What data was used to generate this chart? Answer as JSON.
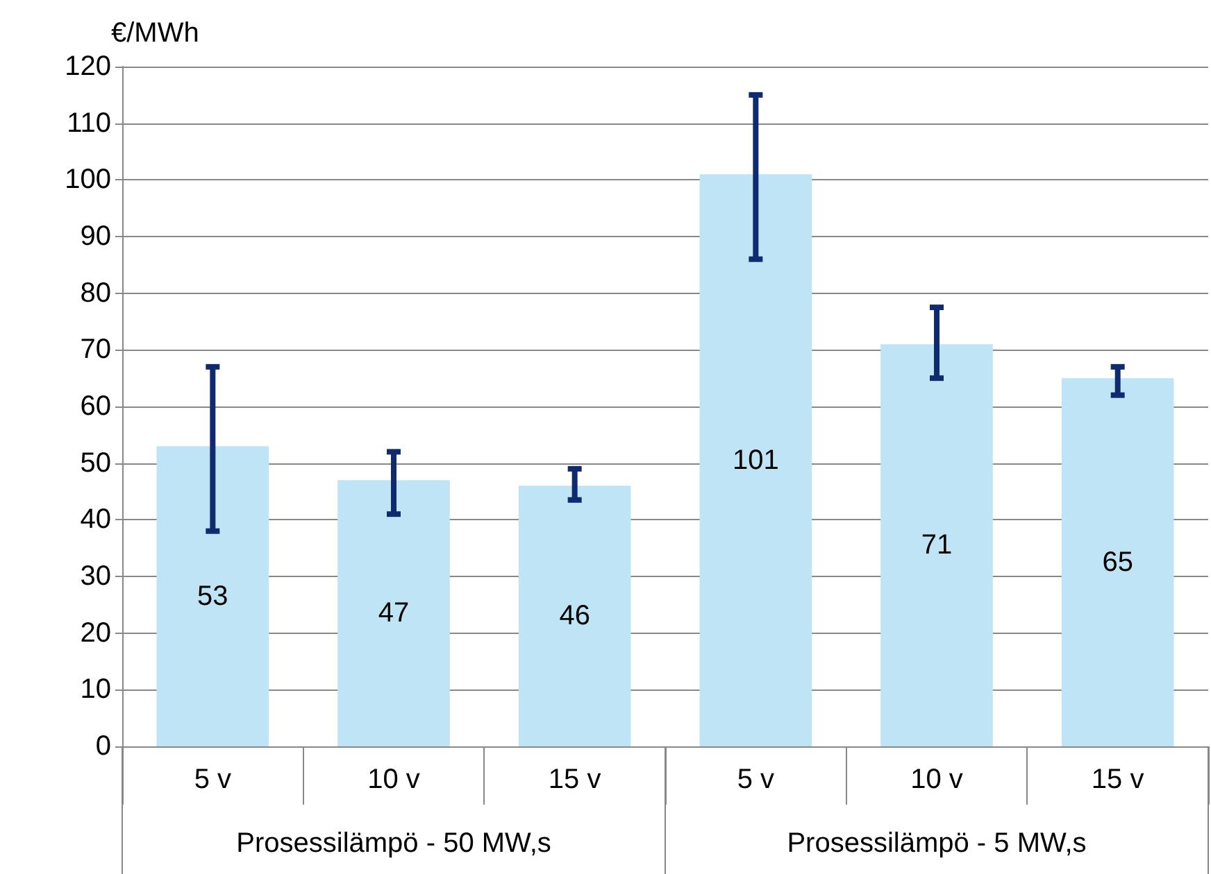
{
  "chart_data": {
    "type": "bar",
    "ylabel": "€/MWh",
    "categories": [
      "5 v",
      "10 v",
      "15 v",
      "5 v",
      "10 v",
      "15 v"
    ],
    "values": [
      53,
      47,
      46,
      101,
      71,
      65
    ],
    "errors": [
      [
        38,
        67
      ],
      [
        41,
        52
      ],
      [
        43.5,
        49
      ],
      [
        86,
        115
      ],
      [
        65,
        77.5
      ],
      [
        62,
        67
      ]
    ],
    "color": "#bee4f6",
    "ylim": [
      0,
      120
    ],
    "yticks": [
      0,
      10,
      20,
      30,
      40,
      50,
      60,
      70,
      80,
      90,
      100,
      110,
      120
    ],
    "grid": "y",
    "data_labels": true,
    "annotations": [
      "Prosessilämpö - 50 MW,s",
      "Prosessilämpö - 5 MW,s"
    ]
  }
}
